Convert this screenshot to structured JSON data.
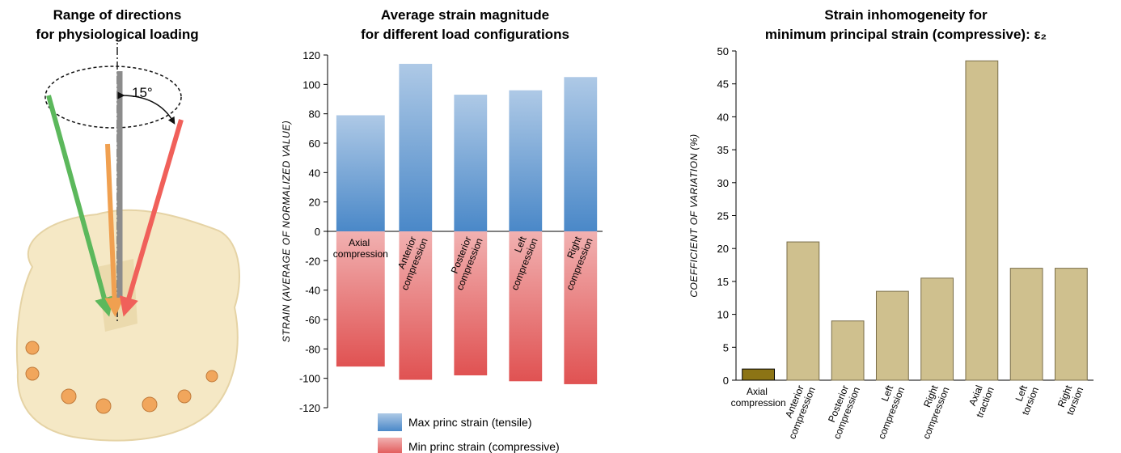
{
  "illustration": {
    "title": [
      "Range of directions",
      "for physiological loading"
    ],
    "angle_label": "15°"
  },
  "chart_data": [
    {
      "type": "bar",
      "title": [
        "Average strain magnitude",
        "for different load configurations"
      ],
      "y_label": "STRAIN  (AVERAGE OF NORMALIZED VALUE)",
      "categories": [
        "Axial compression",
        "Anterior compression",
        "Posterior compression",
        "Left compression",
        "Right compression"
      ],
      "series": [
        {
          "name": "Max princ strain (tensile)",
          "color": "#4a88c8",
          "values": [
            79,
            114,
            93,
            96,
            105
          ]
        },
        {
          "name": "Min princ strain (compressive)",
          "color": "#e05252",
          "values": [
            -92,
            -101,
            -98,
            -102,
            -104
          ]
        }
      ],
      "ylim": [
        -120,
        120
      ],
      "yticks": [
        -120,
        -100,
        -80,
        -60,
        -40,
        -20,
        0,
        20,
        40,
        60,
        80,
        100,
        120
      ],
      "grid": false
    },
    {
      "type": "bar",
      "title": [
        "Strain inhomogeneity for",
        "minimum principal strain (compressive): ε₂"
      ],
      "y_label": "COEFFICIENT OF VARIATION (%)",
      "categories": [
        "Axial compression",
        "Anterior compression",
        "Posterior compression",
        "Left compression",
        "Right compression",
        "Axial traction",
        "Left torsion",
        "Right torsion"
      ],
      "values": [
        1.7,
        21,
        9,
        13.5,
        15.5,
        48.5,
        17,
        17
      ],
      "colors": [
        "#8c7415",
        "#cfc08e",
        "#cfc08e",
        "#cfc08e",
        "#cfc08e",
        "#cfc08e",
        "#cfc08e",
        "#cfc08e"
      ],
      "ylim": [
        0,
        50
      ],
      "yticks": [
        0,
        5,
        10,
        15,
        20,
        25,
        30,
        35,
        40,
        45,
        50
      ],
      "grid": false
    }
  ]
}
